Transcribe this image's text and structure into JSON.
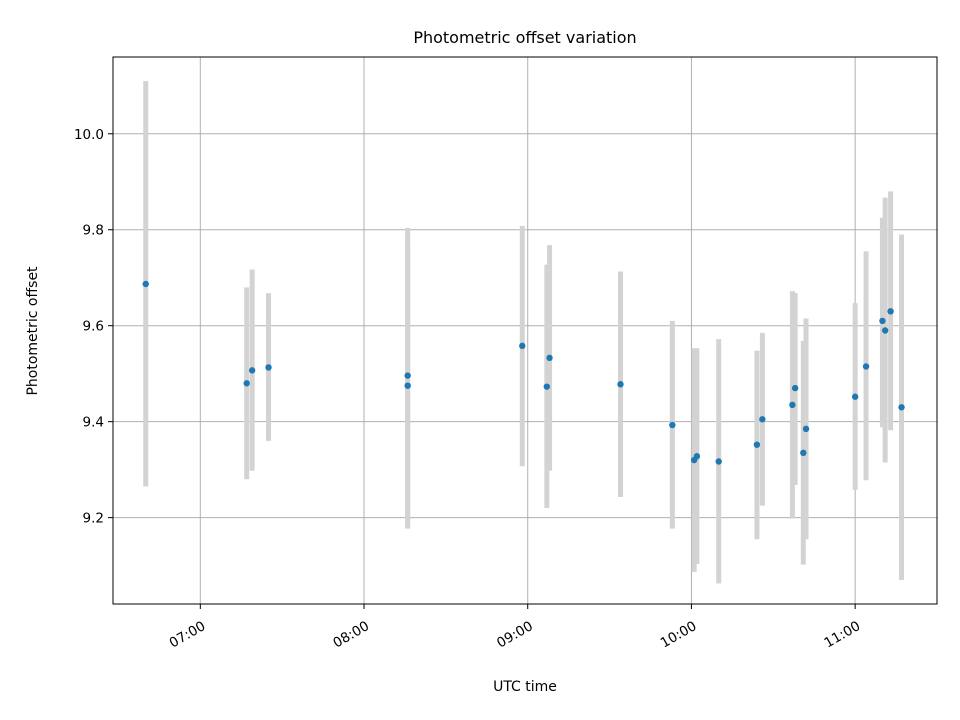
{
  "chart_data": {
    "type": "scatter",
    "title": "Photometric offset variation",
    "xlabel": "UTC time",
    "ylabel": "Photometric offset",
    "xlim": [
      "06:28",
      "11:30"
    ],
    "ylim": [
      9.02,
      10.16
    ],
    "x_ticks": [
      "07:00",
      "08:00",
      "09:00",
      "10:00",
      "11:00"
    ],
    "y_ticks": [
      9.2,
      9.4,
      9.6,
      9.8,
      10.0
    ],
    "grid": true,
    "colors": {
      "points": "#1f77b4",
      "error_bars": "#d3d3d3"
    },
    "points": [
      {
        "x": "06:40",
        "y": 9.687,
        "lo": 9.265,
        "hi": 10.11
      },
      {
        "x": "07:17",
        "y": 9.48,
        "lo": 9.28,
        "hi": 9.68
      },
      {
        "x": "07:19",
        "y": 9.507,
        "lo": 9.298,
        "hi": 9.717
      },
      {
        "x": "07:25",
        "y": 9.513,
        "lo": 9.36,
        "hi": 9.668
      },
      {
        "x": "08:16",
        "y": 9.496,
        "lo": 9.188,
        "hi": 9.804
      },
      {
        "x": "08:16",
        "y": 9.475,
        "lo": 9.177,
        "hi": 9.773
      },
      {
        "x": "08:58",
        "y": 9.558,
        "lo": 9.307,
        "hi": 9.808
      },
      {
        "x": "09:07",
        "y": 9.473,
        "lo": 9.22,
        "hi": 9.727
      },
      {
        "x": "09:08",
        "y": 9.533,
        "lo": 9.298,
        "hi": 9.768
      },
      {
        "x": "09:34",
        "y": 9.478,
        "lo": 9.243,
        "hi": 9.713
      },
      {
        "x": "09:53",
        "y": 9.393,
        "lo": 9.177,
        "hi": 9.61
      },
      {
        "x": "10:01",
        "y": 9.32,
        "lo": 9.087,
        "hi": 9.553
      },
      {
        "x": "10:02",
        "y": 9.328,
        "lo": 9.103,
        "hi": 9.553
      },
      {
        "x": "10:10",
        "y": 9.317,
        "lo": 9.063,
        "hi": 9.572
      },
      {
        "x": "10:24",
        "y": 9.352,
        "lo": 9.155,
        "hi": 9.548
      },
      {
        "x": "10:26",
        "y": 9.405,
        "lo": 9.225,
        "hi": 9.585
      },
      {
        "x": "10:37",
        "y": 9.435,
        "lo": 9.198,
        "hi": 9.672
      },
      {
        "x": "10:38",
        "y": 9.47,
        "lo": 9.268,
        "hi": 9.668
      },
      {
        "x": "10:41",
        "y": 9.335,
        "lo": 9.102,
        "hi": 9.568
      },
      {
        "x": "10:42",
        "y": 9.385,
        "lo": 9.155,
        "hi": 9.615
      },
      {
        "x": "11:00",
        "y": 9.452,
        "lo": 9.258,
        "hi": 9.647
      },
      {
        "x": "11:04",
        "y": 9.515,
        "lo": 9.278,
        "hi": 9.755
      },
      {
        "x": "11:10",
        "y": 9.61,
        "lo": 9.388,
        "hi": 9.825
      },
      {
        "x": "11:11",
        "y": 9.59,
        "lo": 9.315,
        "hi": 9.867
      },
      {
        "x": "11:13",
        "y": 9.63,
        "lo": 9.382,
        "hi": 9.88
      },
      {
        "x": "11:17",
        "y": 9.43,
        "lo": 9.07,
        "hi": 9.79
      }
    ]
  }
}
